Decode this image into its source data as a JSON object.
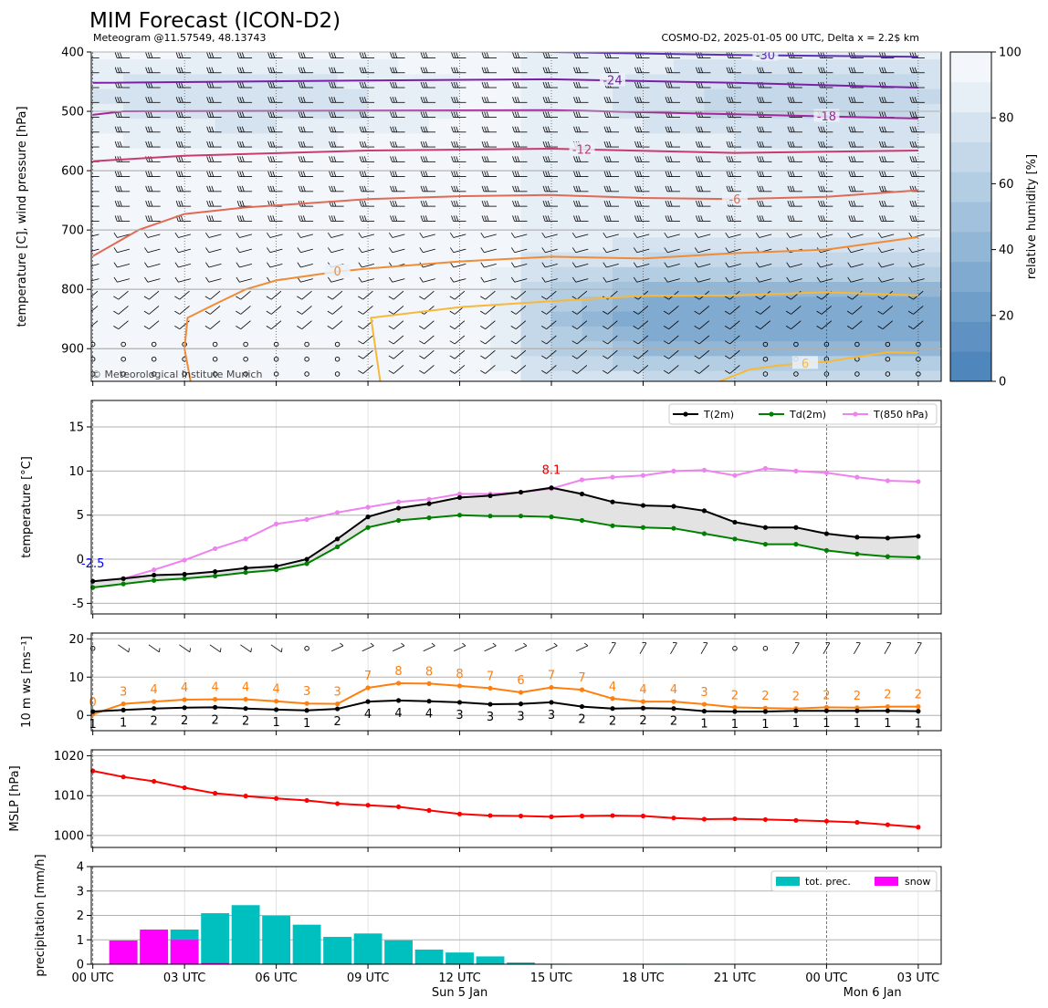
{
  "header": {
    "title": "MIM Forecast (ICON-D2)",
    "subtitle_left": "Meteogram @11.57549, 48.13743",
    "subtitle_right": "COSMO-D2, 2025-01-05 00 UTC, Delta x = 2.2$ km",
    "copyright": "© Meteorological Institute Munich"
  },
  "time_axis": {
    "tick_hours": [
      0,
      3,
      6,
      9,
      12,
      15,
      18,
      21,
      24,
      27
    ],
    "tick_labels": [
      "00 UTC",
      "03 UTC",
      "06 UTC",
      "09 UTC",
      "12 UTC",
      "15 UTC",
      "18 UTC",
      "21 UTC",
      "00 UTC",
      "03 UTC"
    ],
    "day_labels": [
      {
        "hour": 12,
        "label": "Sun 5 Jan"
      },
      {
        "hour": 25.5,
        "label": "Mon 6 Jan"
      }
    ],
    "hours": [
      0,
      1,
      2,
      3,
      4,
      5,
      6,
      7,
      8,
      9,
      10,
      11,
      12,
      13,
      14,
      15,
      16,
      17,
      18,
      19,
      20,
      21,
      22,
      23,
      24,
      25,
      26,
      27
    ]
  },
  "chart_data": [
    {
      "id": "profile",
      "type": "heatmap",
      "ylabel": "temperature [C], wind pressure [hPa]",
      "ylim": [
        955,
        400
      ],
      "y_ticks": [
        400,
        500,
        600,
        700,
        800,
        900
      ],
      "colorbar": {
        "label": "relative humidity [%]",
        "ticks": [
          0,
          20,
          40,
          60,
          80,
          100
        ],
        "colors": [
          "#4f86bb",
          "#5f92c2",
          "#6f9ec8",
          "#80aacf",
          "#91b6d6",
          "#a2c1dc",
          "#b3cde3",
          "#c4d8ea",
          "#d5e3f0",
          "#e6eef6",
          "#f3f7fb"
        ]
      },
      "isotherms": [
        {
          "label": "-30",
          "label_hour": 22,
          "color": "#5c2fb5",
          "points": [
            [
              0,
              394
            ],
            [
              9,
              397
            ],
            [
              15,
              400
            ],
            [
              21,
              405
            ],
            [
              27,
              408
            ]
          ]
        },
        {
          "label": "-24",
          "label_hour": 17,
          "color": "#7b1fa8",
          "points": [
            [
              0,
              452
            ],
            [
              9,
              448
            ],
            [
              15,
              446
            ],
            [
              21,
              452
            ],
            [
              27,
              460
            ]
          ]
        },
        {
          "label": "-18",
          "label_hour": 24,
          "color": "#a0289a",
          "points": [
            [
              0,
              506
            ],
            [
              1,
              500
            ],
            [
              9,
              499
            ],
            [
              15,
              498
            ],
            [
              21,
              505
            ],
            [
              27,
              512
            ]
          ]
        },
        {
          "label": "-12",
          "label_hour": 16,
          "color": "#c93a6e",
          "points": [
            [
              0,
              584
            ],
            [
              3,
              575
            ],
            [
              9,
              566
            ],
            [
              15,
              563
            ],
            [
              21,
              570
            ],
            [
              27,
              566
            ]
          ]
        },
        {
          "label": "-6",
          "label_hour": 21,
          "color": "#e06a56",
          "points": [
            [
              0,
              744
            ],
            [
              1.5,
              700
            ],
            [
              3,
              673
            ],
            [
              5,
              662
            ],
            [
              9,
              648
            ],
            [
              12,
              643
            ],
            [
              15,
              641
            ],
            [
              18,
              646
            ],
            [
              21,
              648
            ],
            [
              24,
              644
            ],
            [
              27,
              633
            ]
          ]
        },
        {
          "label": "0",
          "label_hour": 8,
          "color": "#f08c38",
          "points": [
            [
              3.2,
              955
            ],
            [
              3,
              900
            ],
            [
              3.1,
              848
            ],
            [
              4,
              825
            ],
            [
              5,
              800
            ],
            [
              6,
              785
            ],
            [
              8,
              770
            ],
            [
              9,
              765
            ],
            [
              12,
              753
            ],
            [
              15,
              745
            ],
            [
              18,
              748
            ],
            [
              21,
              739
            ],
            [
              24,
              733
            ],
            [
              27,
              712
            ]
          ]
        },
        {
          "label": "",
          "label_hour": null,
          "color": "#f8b838",
          "points": [
            [
              9.4,
              955
            ],
            [
              9.1,
              848
            ],
            [
              12,
              830
            ],
            [
              15,
              820
            ],
            [
              18,
              811
            ],
            [
              21,
              810
            ],
            [
              24,
              805
            ],
            [
              27,
              810
            ]
          ]
        },
        {
          "label": "6",
          "label_hour": 23.3,
          "color": "#f8b838",
          "points": [
            [
              20.5,
              955
            ],
            [
              21.5,
              935
            ],
            [
              22.5,
              928
            ],
            [
              24,
              922
            ],
            [
              26,
              906
            ],
            [
              27,
              907
            ]
          ]
        }
      ],
      "wind_barbs": "grid every hour at every 25 hPa level (calm circles near surface)"
    },
    {
      "id": "temperature",
      "type": "line",
      "ylabel": "temperature [$^\\circ$C]",
      "ylim": [
        -6.2,
        18
      ],
      "y_ticks": [
        -5,
        0,
        5,
        10,
        15
      ],
      "legend": [
        "T(2m)",
        "Td(2m)",
        "T(850 hPa)"
      ],
      "series": [
        {
          "name": "T(2m)",
          "color": "#000000",
          "values": [
            -2.5,
            -2.2,
            -1.8,
            -1.7,
            -1.4,
            -1.0,
            -0.8,
            0.0,
            2.3,
            4.8,
            5.8,
            6.3,
            7.0,
            7.2,
            7.6,
            8.1,
            7.4,
            6.5,
            6.1,
            6.0,
            5.5,
            4.2,
            3.6,
            3.6,
            2.9,
            2.5,
            2.4,
            2.6
          ]
        },
        {
          "name": "Td(2m)",
          "color": "#008000",
          "values": [
            -3.2,
            -2.8,
            -2.4,
            -2.2,
            -1.9,
            -1.5,
            -1.2,
            -0.5,
            1.4,
            3.6,
            4.4,
            4.7,
            5.0,
            4.9,
            4.9,
            4.8,
            4.4,
            3.8,
            3.6,
            3.5,
            2.9,
            2.3,
            1.7,
            1.7,
            1.0,
            0.6,
            0.3,
            0.2
          ]
        },
        {
          "name": "T(850 hPa)",
          "color": "#ee82ee",
          "values": [
            -2.5,
            -2.2,
            -1.2,
            -0.1,
            1.2,
            2.3,
            4.0,
            4.5,
            5.3,
            5.9,
            6.5,
            6.8,
            7.4,
            7.4,
            7.6,
            8.0,
            9.0,
            9.3,
            9.5,
            10.0,
            10.1,
            9.5,
            10.3,
            10.0,
            9.8,
            9.3,
            8.9,
            8.8
          ]
        }
      ],
      "annotations": [
        {
          "text": "-2.5",
          "hour": 0,
          "value": -2.5,
          "color": "#0000ff"
        },
        {
          "text": "8.1",
          "hour": 15,
          "value": 8.1,
          "color": "#e00000"
        }
      ]
    },
    {
      "id": "wind",
      "type": "line",
      "ylabel": "10 m ws [ms$^{-1}$]",
      "ylim": [
        -4,
        21.5
      ],
      "y_ticks": [
        0,
        10,
        20
      ],
      "series": [
        {
          "name": "gust",
          "color": "#ff7f0e",
          "values": [
            0.3,
            3.0,
            3.6,
            4.1,
            4.2,
            4.2,
            3.7,
            3.1,
            3.0,
            7.2,
            8.4,
            8.3,
            7.7,
            7.1,
            6.0,
            7.3,
            6.7,
            4.4,
            3.6,
            3.6,
            2.9,
            2.1,
            1.9,
            1.8,
            2.1,
            2.0,
            2.3,
            2.3
          ]
        },
        {
          "name": "ws",
          "color": "#000000",
          "values": [
            1.0,
            1.4,
            1.8,
            2.0,
            2.1,
            1.8,
            1.5,
            1.3,
            1.7,
            3.6,
            3.9,
            3.7,
            3.4,
            2.9,
            3.0,
            3.4,
            2.3,
            1.8,
            1.9,
            1.8,
            1.1,
            1.0,
            1.0,
            1.2,
            1.2,
            1.2,
            1.2,
            1.1
          ]
        }
      ],
      "gust_labels": [
        "0",
        "3",
        "4",
        "4",
        "4",
        "4",
        "4",
        "3",
        "3",
        "7",
        "8",
        "8",
        "8",
        "7",
        "6",
        "7",
        "7",
        "4",
        "4",
        "4",
        "3",
        "2",
        "2",
        "2",
        "2",
        "2",
        "2",
        "2"
      ],
      "ws_labels": [
        "1",
        "1",
        "2",
        "2",
        "2",
        "2",
        "1",
        "1",
        "2",
        "4",
        "4",
        "4",
        "3",
        "3",
        "3",
        "3",
        "2",
        "2",
        "2",
        "2",
        "1",
        "1",
        "1",
        "1",
        "1",
        "1",
        "1",
        "1"
      ]
    },
    {
      "id": "mslp",
      "type": "line",
      "ylabel": "MSLP [hPa]",
      "ylim": [
        997,
        1021.5
      ],
      "y_ticks": [
        1000,
        1010,
        1020
      ],
      "series": [
        {
          "name": "MSLP",
          "color": "#ff0000",
          "values": [
            1016.2,
            1014.7,
            1013.6,
            1012.0,
            1010.6,
            1009.9,
            1009.3,
            1008.8,
            1008.0,
            1007.6,
            1007.2,
            1006.3,
            1005.4,
            1005.0,
            1004.9,
            1004.7,
            1004.9,
            1005.0,
            1004.9,
            1004.4,
            1004.1,
            1004.2,
            1004.0,
            1003.8,
            1003.6,
            1003.3,
            1002.7,
            1002.1
          ]
        }
      ]
    },
    {
      "id": "precip",
      "type": "bar",
      "ylabel": "precipitation [mm/h]",
      "ylim": [
        0,
        4
      ],
      "y_ticks": [
        0,
        1,
        2,
        3,
        4
      ],
      "legend": [
        "tot. prec.",
        "snow"
      ],
      "series": [
        {
          "name": "tot. prec.",
          "color": "#00bfbf",
          "values": [
            0,
            0.97,
            1.33,
            1.42,
            2.09,
            2.42,
            1.98,
            1.62,
            1.12,
            1.26,
            0.98,
            0.6,
            0.48,
            0.32,
            0.07,
            0.02,
            0,
            0.01,
            0,
            0.02,
            0,
            0,
            0,
            0,
            0,
            0,
            0,
            0
          ]
        },
        {
          "name": "snow",
          "color": "#ff00ff",
          "values": [
            0,
            0.97,
            1.42,
            1.0,
            0.05,
            0,
            0,
            0,
            0,
            0,
            0,
            0,
            0,
            0,
            0,
            0,
            0,
            0,
            0,
            0,
            0,
            0,
            0,
            0,
            0,
            0,
            0,
            0
          ]
        }
      ]
    }
  ]
}
